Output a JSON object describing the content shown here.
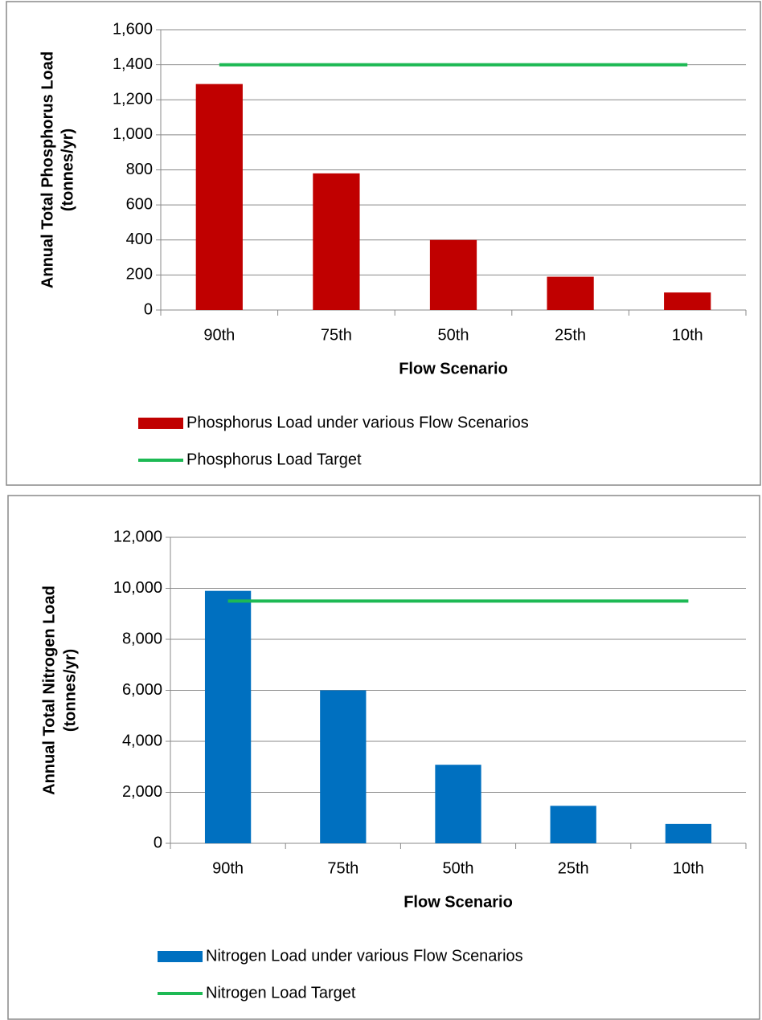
{
  "chart_data": [
    {
      "type": "bar",
      "y_label": [
        "Annual Total Phosphorus Load",
        "(tonnes/yr)"
      ],
      "x_label": "Flow Scenario",
      "categories": [
        "90th",
        "75th",
        "50th",
        "25th",
        "10th"
      ],
      "series": [
        {
          "name": "Phosphorus Load under various Flow Scenarios",
          "type": "bar",
          "color": "#c00000",
          "values": [
            1290,
            780,
            400,
            190,
            100
          ]
        },
        {
          "name": "Phosphorus Load Target",
          "type": "line",
          "color": "#1db954",
          "values": [
            1400,
            1400,
            1400,
            1400,
            1400
          ]
        }
      ],
      "ylim": [
        0,
        1600
      ],
      "yticks": [
        0,
        200,
        400,
        600,
        800,
        {
          "value": 1000,
          "label": "1,000"
        },
        {
          "value": 1200,
          "label": "1,200"
        },
        {
          "value": 1400,
          "label": "1,400"
        },
        {
          "value": 1600,
          "label": "1,600"
        }
      ],
      "grid": true,
      "legend": "bottom"
    },
    {
      "type": "bar",
      "y_label": [
        "Annual Total Nitrogen Load",
        "(tonnes/yr)"
      ],
      "x_label": "Flow Scenario",
      "categories": [
        "90th",
        "75th",
        "50th",
        "25th",
        "10th"
      ],
      "series": [
        {
          "name": "Nitrogen Load under various Flow Scenarios",
          "type": "bar",
          "color": "#0070c0",
          "values": [
            9900,
            6000,
            3080,
            1470,
            760
          ]
        },
        {
          "name": "Nitrogen Load Target",
          "type": "line",
          "color": "#1db954",
          "values": [
            9500,
            9500,
            9500,
            9500,
            9500
          ]
        }
      ],
      "ylim": [
        0,
        12000
      ],
      "yticks": [
        0,
        {
          "value": 2000,
          "label": "2,000"
        },
        {
          "value": 4000,
          "label": "4,000"
        },
        {
          "value": 6000,
          "label": "6,000"
        },
        {
          "value": 8000,
          "label": "8,000"
        },
        {
          "value": 10000,
          "label": "10,000"
        },
        {
          "value": 12000,
          "label": "12,000"
        }
      ],
      "grid": true,
      "legend": "bottom"
    }
  ]
}
